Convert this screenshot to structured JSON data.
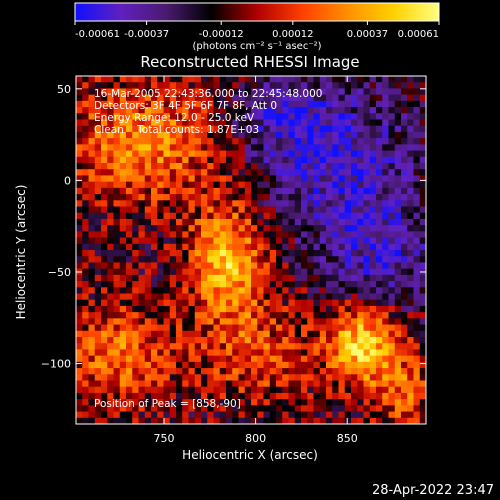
{
  "chart_data": {
    "type": "heatmap",
    "title": "Reconstructed RHESSI Image",
    "xlabel": "Heliocentric X (arcsec)",
    "ylabel": "Heliocentric Y (arcsec)",
    "xlim": [
      702,
      893
    ],
    "ylim": [
      -133,
      57
    ],
    "x_ticks": [
      750,
      800,
      850
    ],
    "y_ticks": [
      50,
      0,
      -50,
      -100
    ],
    "colorbar": {
      "ticks": [
        "-0.00061",
        "-0.00037",
        "-0.00012",
        "0.00012",
        "0.00037",
        "0.00061"
      ],
      "values": [
        -0.00061,
        -0.00037,
        -0.00012,
        0.00012,
        0.00037,
        0.00061
      ],
      "range": [
        -0.00061,
        0.00061
      ],
      "unit_label": "(photons cm⁻² s⁻¹ asec⁻²)",
      "colors": [
        "#1010ff",
        "#6020c0",
        "#4a1a70",
        "#000000",
        "#b00000",
        "#ff4000",
        "#ff9000",
        "#ffd000",
        "#ffff80"
      ]
    },
    "annotations": [
      "16-Mar-2005 22:43:36.000 to 22:45:48.000",
      "Detectors: 3F 4F 5F 6F 7F 8F, Att 0",
      "Energy Range: 12.0 - 25.0 keV",
      "Clean    Total counts: 1.87E+03"
    ],
    "peak_label": "Position of Peak = [858,-90]",
    "peak": [
      858,
      -90
    ],
    "sources": [
      {
        "x": 785,
        "y": -45,
        "amp": 0.00055,
        "sx": 14,
        "sy": 22
      },
      {
        "x": 858,
        "y": -90,
        "amp": 0.00061,
        "sx": 13,
        "sy": 14
      },
      {
        "x": 740,
        "y": 20,
        "amp": 0.0004,
        "sx": 30,
        "sy": 22
      },
      {
        "x": 725,
        "y": -95,
        "amp": 0.00035,
        "sx": 20,
        "sy": 18
      },
      {
        "x": 800,
        "y": -95,
        "amp": 0.00025,
        "sx": 22,
        "sy": 18
      },
      {
        "x": 880,
        "y": -115,
        "amp": 0.0003,
        "sx": 12,
        "sy": 14
      },
      {
        "x": 845,
        "y": 10,
        "amp": -0.00035,
        "sx": 30,
        "sy": 30
      },
      {
        "x": 870,
        "y": -40,
        "amp": -0.0003,
        "sx": 20,
        "sy": 20
      },
      {
        "x": 815,
        "y": 35,
        "amp": -0.00025,
        "sx": 20,
        "sy": 15
      }
    ]
  },
  "footer": {
    "date": "28-Apr-2022 23:47"
  }
}
